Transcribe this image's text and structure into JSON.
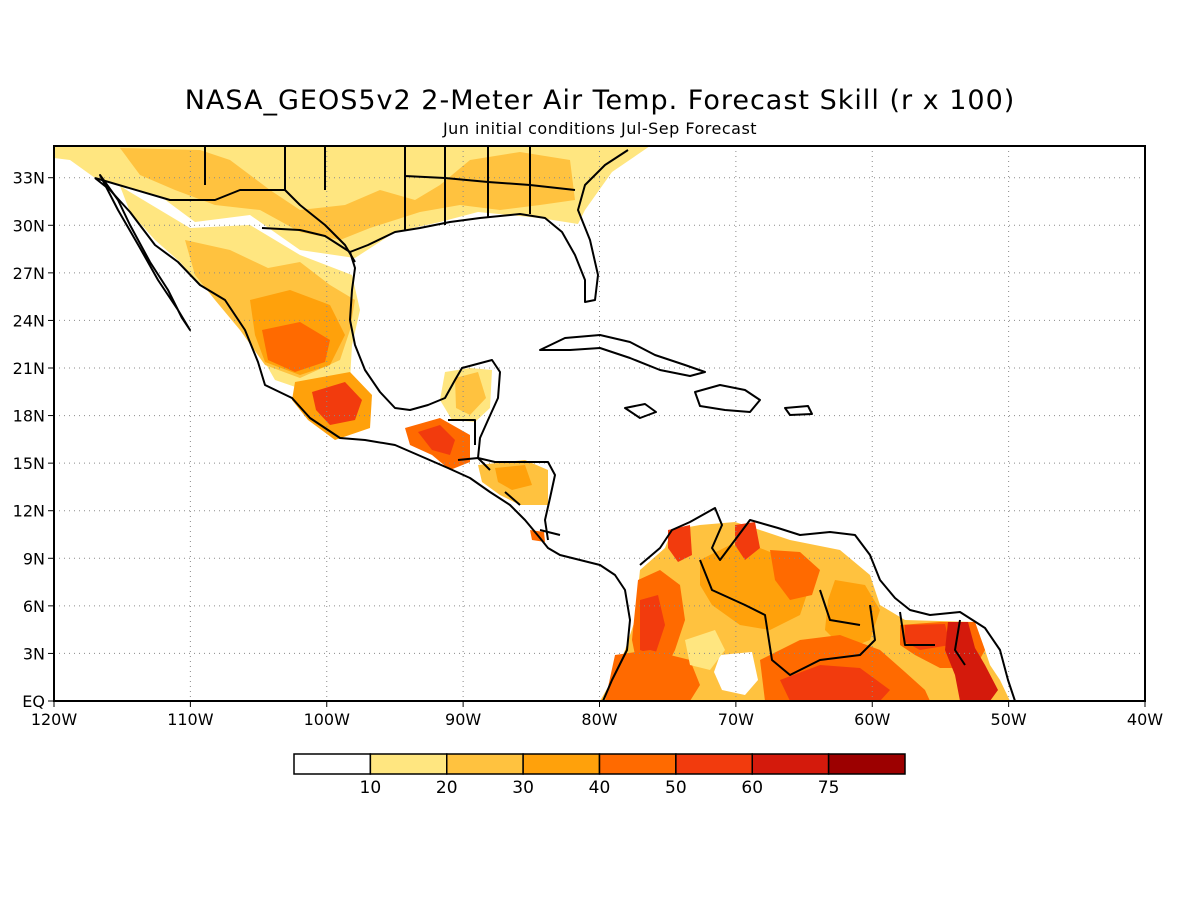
{
  "title": "NASA_GEOS5v2 2-Meter Air Temp. Forecast Skill (r x 100)",
  "subtitle": "Jun initial conditions   Jul-Sep Forecast",
  "axes": {
    "lon_ticks": [
      {
        "value": -120,
        "label": "120W"
      },
      {
        "value": -110,
        "label": "110W"
      },
      {
        "value": -100,
        "label": "100W"
      },
      {
        "value": -90,
        "label": "90W"
      },
      {
        "value": -80,
        "label": "80W"
      },
      {
        "value": -70,
        "label": "70W"
      },
      {
        "value": -60,
        "label": "60W"
      },
      {
        "value": -50,
        "label": "50W"
      },
      {
        "value": -40,
        "label": "40W"
      }
    ],
    "lat_ticks": [
      {
        "value": 0,
        "label": "EQ"
      },
      {
        "value": 3,
        "label": "3N"
      },
      {
        "value": 6,
        "label": "6N"
      },
      {
        "value": 9,
        "label": "9N"
      },
      {
        "value": 12,
        "label": "12N"
      },
      {
        "value": 15,
        "label": "15N"
      },
      {
        "value": 18,
        "label": "18N"
      },
      {
        "value": 21,
        "label": "21N"
      },
      {
        "value": 24,
        "label": "24N"
      },
      {
        "value": 27,
        "label": "27N"
      },
      {
        "value": 30,
        "label": "30N"
      },
      {
        "value": 33,
        "label": "33N"
      }
    ],
    "lon_range": [
      -120,
      -40
    ],
    "lat_range": [
      0,
      35
    ],
    "grid": "dotted"
  },
  "colorbar": {
    "colors": [
      "#ffffff",
      "#ffe680",
      "#ffc23f",
      "#ffa10b",
      "#ff6a00",
      "#f23b0d",
      "#d41a0c",
      "#9c0000"
    ],
    "labels": [
      "10",
      "20",
      "30",
      "40",
      "50",
      "60",
      "75"
    ]
  }
}
